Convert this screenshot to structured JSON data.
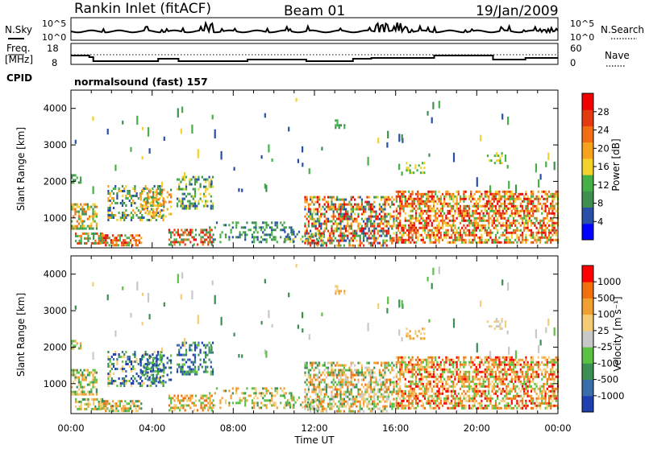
{
  "header": {
    "station": "Rankin Inlet (fitACF)",
    "beam": "Beam 01",
    "date": "19/Jan/2009"
  },
  "noise_panel": {
    "left_label": "N.Sky",
    "right_label": "N.Search",
    "left_ticks": [
      "10^5",
      "10^0"
    ],
    "right_ticks": [
      "10^5",
      "10^0"
    ]
  },
  "freq_panel": {
    "left_label_1": "Freq.",
    "left_label_2": "[MHz]",
    "right_label": "Nave",
    "left_ticks": [
      "18",
      "8"
    ],
    "right_ticks": [
      "60",
      "0"
    ]
  },
  "cpid": {
    "label": "CPID",
    "value": "normalsound (fast) 157"
  },
  "colors": {
    "power": [
      "#0000ff",
      "#2a4fa6",
      "#3f8f4f",
      "#46b047",
      "#f2d22b",
      "#f7a21c",
      "#f36d12",
      "#e33a10",
      "#f00000"
    ],
    "velocity": [
      "#1e3fb0",
      "#3a6ea8",
      "#3b8f52",
      "#5bc142",
      "#c8c8c8",
      "#f5cc75",
      "#f0a030",
      "#f07010",
      "#ff0000"
    ]
  },
  "chart_data": [
    {
      "type": "heatmap",
      "title": "Power",
      "xlabel": "Time UT",
      "ylabel": "Slant Range [km]",
      "x_ticks": [
        "00:00",
        "04:00",
        "08:00",
        "12:00",
        "16:00",
        "20:00",
        "00:00"
      ],
      "y_ticks": [
        "1000",
        "2000",
        "3000",
        "4000"
      ],
      "ylim": [
        180,
        4500
      ],
      "xlim_hours": [
        0,
        24
      ],
      "colorbar": {
        "label": "Power [dB]",
        "ticks": [
          "4",
          "8",
          "12",
          "16",
          "20",
          "24",
          "28"
        ],
        "range": [
          0,
          31
        ]
      }
    },
    {
      "type": "heatmap",
      "title": "Velocity",
      "xlabel": "Time UT",
      "ylabel": "Slant Range [km]",
      "x_ticks": [
        "00:00",
        "04:00",
        "08:00",
        "12:00",
        "16:00",
        "20:00",
        "00:00"
      ],
      "y_ticks": [
        "1000",
        "2000",
        "3000",
        "4000"
      ],
      "ylim": [
        180,
        4500
      ],
      "xlim_hours": [
        0,
        24
      ],
      "colorbar": {
        "label": "Velocity [m s⁻¹]",
        "ticks": [
          "1000",
          "500",
          "100",
          "25",
          "-25",
          "-100",
          "-500",
          "-1000"
        ]
      }
    }
  ]
}
